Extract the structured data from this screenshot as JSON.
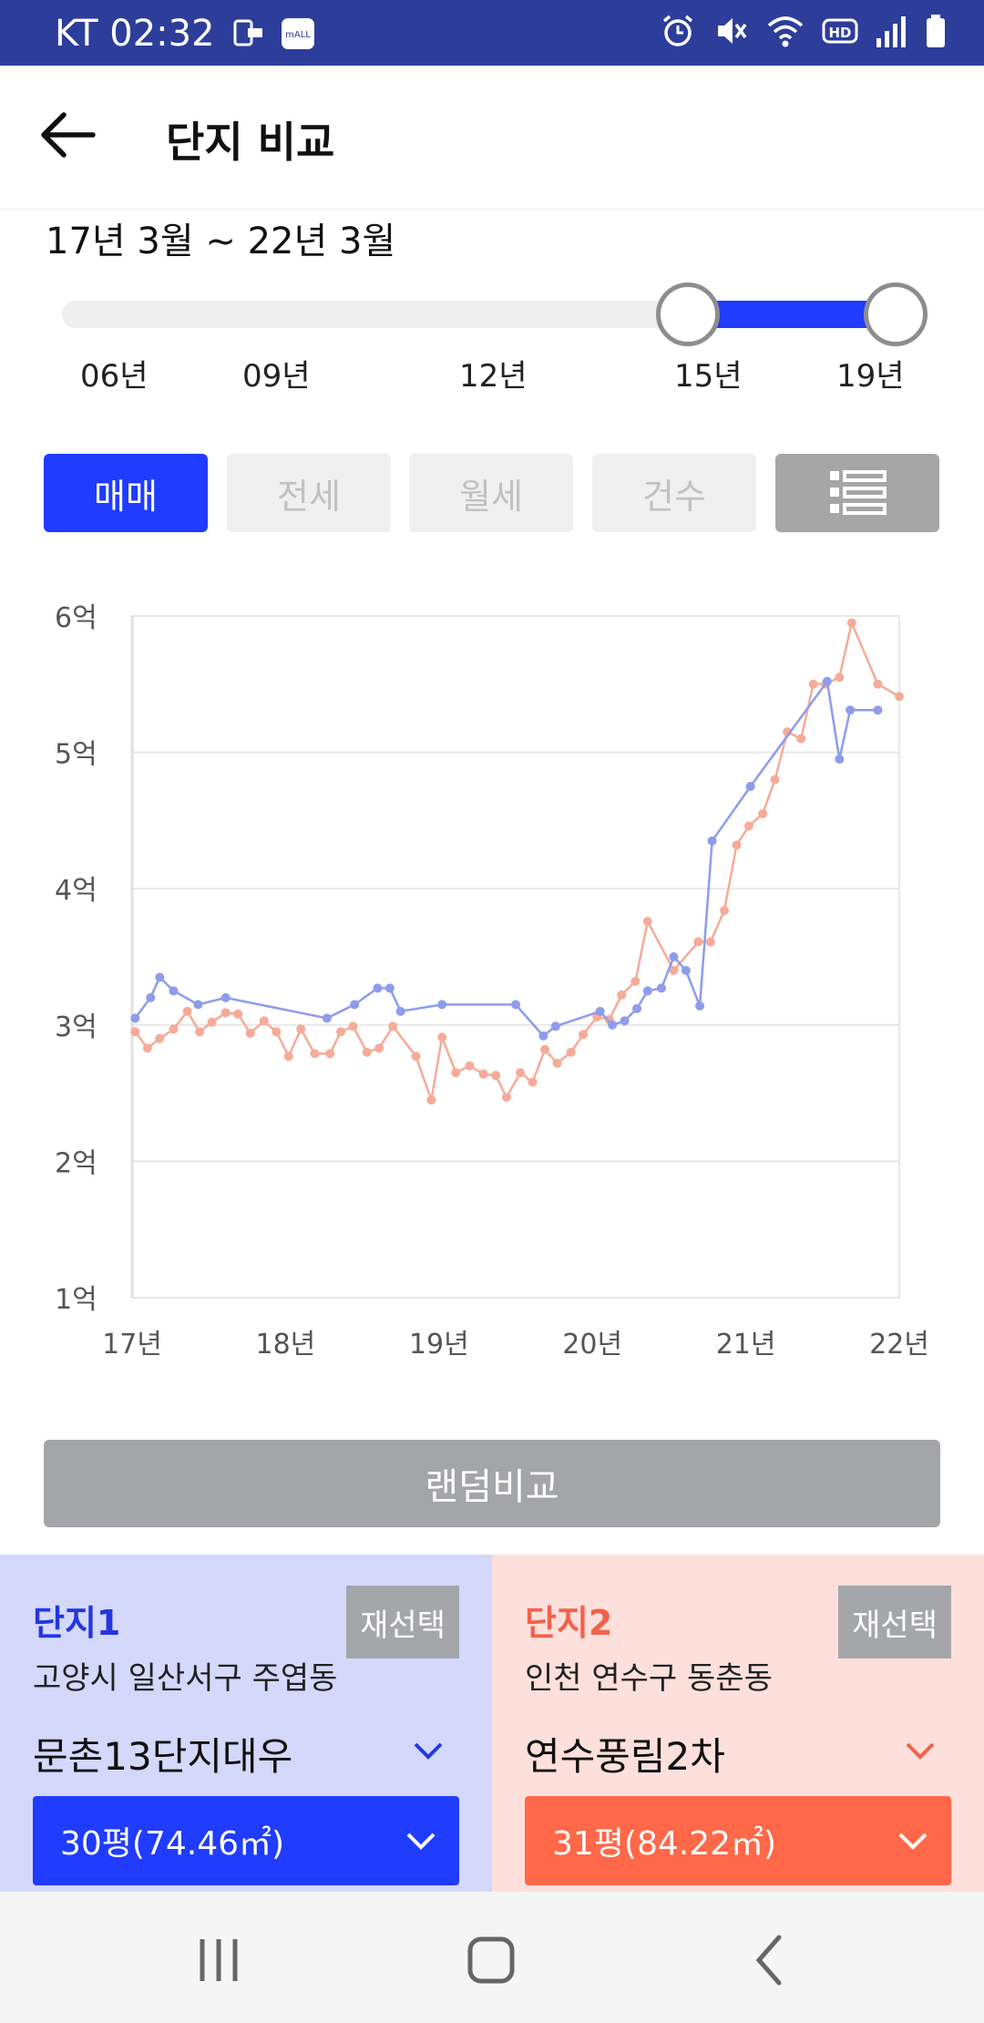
{
  "status_bar": {
    "carrier_time": "KT 02:32",
    "left_icons": [
      "notification-icon",
      "mall-app-icon"
    ],
    "right_icons": [
      "alarm-icon",
      "mute-icon",
      "wifi-icon",
      "hd-voice-icon",
      "signal-icon",
      "battery-icon"
    ]
  },
  "header": {
    "title": "단지 비교",
    "back_icon": "arrow-left-icon"
  },
  "range": {
    "label": "17년 3월 ~ 22년 3월",
    "ticks": [
      "06년",
      "09년",
      "12년",
      "15년",
      "19년"
    ]
  },
  "tabs": [
    {
      "label": "매매",
      "active": true
    },
    {
      "label": "전세",
      "active": false
    },
    {
      "label": "월세",
      "active": false
    },
    {
      "label": "건수",
      "active": false
    }
  ],
  "list_view_icon": "list-icon",
  "colors": {
    "accent_blue": "#1f3cff",
    "series1": "#8e9cec",
    "series2": "#f6ab98",
    "accent_orange": "#ff6848"
  },
  "chart_data": {
    "type": "line",
    "x_tick_labels": [
      "17년",
      "18년",
      "19년",
      "20년",
      "21년",
      "22년"
    ],
    "y_tick_labels": [
      "6억",
      "5억",
      "4억",
      "3억",
      "2억",
      "1억"
    ],
    "xlim": [
      2017.0,
      2022.0
    ],
    "ylim": [
      1,
      6
    ],
    "grid": true,
    "series": [
      {
        "name": "단지1",
        "color": "#8e9cec",
        "points": [
          [
            2017.02,
            3.05
          ],
          [
            2017.12,
            3.2
          ],
          [
            2017.18,
            3.35
          ],
          [
            2017.27,
            3.25
          ],
          [
            2017.43,
            3.15
          ],
          [
            2017.61,
            3.2
          ],
          [
            2018.27,
            3.05
          ],
          [
            2018.45,
            3.15
          ],
          [
            2018.6,
            3.27
          ],
          [
            2018.68,
            3.27
          ],
          [
            2018.75,
            3.1
          ],
          [
            2019.02,
            3.15
          ],
          [
            2019.5,
            3.15
          ],
          [
            2019.68,
            2.92
          ],
          [
            2019.76,
            2.99
          ],
          [
            2020.05,
            3.1
          ],
          [
            2020.13,
            3.0
          ],
          [
            2020.21,
            3.03
          ],
          [
            2020.29,
            3.12
          ],
          [
            2020.36,
            3.25
          ],
          [
            2020.45,
            3.27
          ],
          [
            2020.53,
            3.5
          ],
          [
            2020.61,
            3.4
          ],
          [
            2020.7,
            3.14
          ],
          [
            2020.78,
            4.35
          ],
          [
            2021.03,
            4.75
          ],
          [
            2021.53,
            5.52
          ],
          [
            2021.61,
            4.95
          ],
          [
            2021.68,
            5.31
          ],
          [
            2021.86,
            5.31
          ]
        ]
      },
      {
        "name": "단지2",
        "color": "#f6ab98",
        "points": [
          [
            2017.02,
            2.95
          ],
          [
            2017.1,
            2.83
          ],
          [
            2017.18,
            2.9
          ],
          [
            2017.27,
            2.97
          ],
          [
            2017.36,
            3.1
          ],
          [
            2017.44,
            2.95
          ],
          [
            2017.52,
            3.02
          ],
          [
            2017.61,
            3.09
          ],
          [
            2017.69,
            3.08
          ],
          [
            2017.77,
            2.94
          ],
          [
            2017.86,
            3.03
          ],
          [
            2017.94,
            2.95
          ],
          [
            2018.02,
            2.77
          ],
          [
            2018.1,
            2.97
          ],
          [
            2018.19,
            2.79
          ],
          [
            2018.29,
            2.79
          ],
          [
            2018.36,
            2.95
          ],
          [
            2018.44,
            2.99
          ],
          [
            2018.53,
            2.8
          ],
          [
            2018.61,
            2.83
          ],
          [
            2018.7,
            2.99
          ],
          [
            2018.85,
            2.77
          ],
          [
            2018.95,
            2.45
          ],
          [
            2019.02,
            2.91
          ],
          [
            2019.11,
            2.65
          ],
          [
            2019.2,
            2.7
          ],
          [
            2019.29,
            2.64
          ],
          [
            2019.37,
            2.63
          ],
          [
            2019.44,
            2.47
          ],
          [
            2019.53,
            2.65
          ],
          [
            2019.61,
            2.58
          ],
          [
            2019.69,
            2.82
          ],
          [
            2019.77,
            2.72
          ],
          [
            2019.86,
            2.8
          ],
          [
            2019.94,
            2.93
          ],
          [
            2020.03,
            3.06
          ],
          [
            2020.11,
            3.04
          ],
          [
            2020.19,
            3.22
          ],
          [
            2020.28,
            3.32
          ],
          [
            2020.36,
            3.76
          ],
          [
            2020.53,
            3.4
          ],
          [
            2020.69,
            3.61
          ],
          [
            2020.77,
            3.61
          ],
          [
            2020.86,
            3.84
          ],
          [
            2020.94,
            4.32
          ],
          [
            2021.02,
            4.46
          ],
          [
            2021.11,
            4.55
          ],
          [
            2021.19,
            4.8
          ],
          [
            2021.27,
            5.15
          ],
          [
            2021.36,
            5.1
          ],
          [
            2021.44,
            5.5
          ],
          [
            2021.52,
            5.5
          ],
          [
            2021.61,
            5.55
          ],
          [
            2021.69,
            5.95
          ],
          [
            2021.86,
            5.5
          ],
          [
            2022.0,
            5.41
          ]
        ]
      }
    ]
  },
  "random_compare": {
    "label": "랜덤비교"
  },
  "panels": [
    {
      "title": "단지1",
      "reselect": "재선택",
      "region": "고양시 일산서구 주엽동",
      "apt_name": "문촌13단지대우",
      "size": "30평(74.46㎡)",
      "chevron_icon": "chevron-down-icon"
    },
    {
      "title": "단지2",
      "reselect": "재선택",
      "region": "인천 연수구 동춘동",
      "apt_name": "연수풍림2차",
      "size": "31평(84.22㎡)",
      "chevron_icon": "chevron-down-icon"
    }
  ],
  "nav_bar": {
    "icons": [
      "recent-apps-icon",
      "home-icon",
      "back-icon"
    ]
  }
}
